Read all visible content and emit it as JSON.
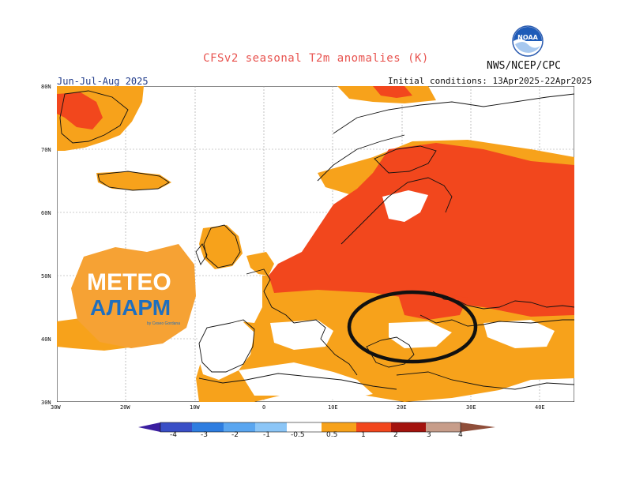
{
  "title": "CFSv2 seasonal T2m anomalies (K)",
  "agency": "NWS/NCEP/CPC",
  "logo_text": "NOAA",
  "season": "Jun-Jul-Aug 2025",
  "initial_conditions": "Initial conditions: 13Apr2025-22Apr2025",
  "map": {
    "lat_labels": [
      "80N",
      "70N",
      "60N",
      "50N",
      "40N",
      "30N"
    ],
    "lon_labels": [
      "30W",
      "20W",
      "10W",
      "0",
      "10E",
      "20E",
      "30E",
      "40E"
    ],
    "extent": {
      "lon_min": -30,
      "lon_max": 45,
      "lat_min": 30,
      "lat_max": 80
    },
    "highlight_annotation": "black-ellipse-around-balkans",
    "colors": {
      "land_outline": "#111111",
      "grid": "#9a9a9a",
      "anom_0_5_1": "#f7a21b",
      "anom_1_2": "#f2471d",
      "ellipse": "#111111"
    }
  },
  "colorbar": {
    "labels": [
      "-4",
      "-3",
      "-2",
      "-1",
      "-0.5",
      "0.5",
      "1",
      "2",
      "3",
      "4"
    ],
    "colors": [
      "#3b1ea0",
      "#3a4fc6",
      "#2e7de0",
      "#5aa6f0",
      "#8cc6f7",
      "#ffffff",
      "#f7a21b",
      "#f2471d",
      "#a3130e",
      "#c79d8a"
    ]
  },
  "watermark": {
    "line1": "METEO",
    "line2": "АЛАРМ",
    "tagline": "by Ceseo Gordana",
    "color_blob": "#f6a234",
    "color_text1": "#ffffff",
    "color_text2": "#1e6fbf"
  }
}
